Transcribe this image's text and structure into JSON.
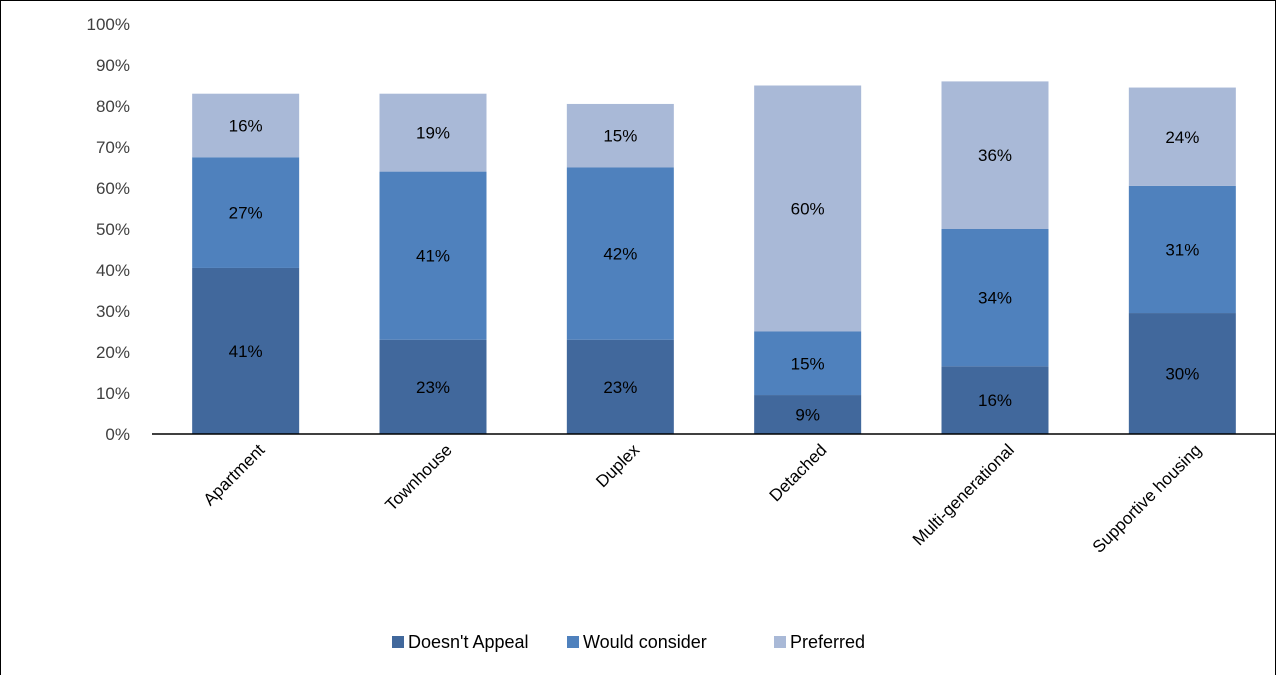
{
  "chart_data": {
    "type": "bar",
    "stacked": true,
    "categories": [
      "Apartment",
      "Townhouse",
      "Duplex",
      "Detached",
      "Multi-generational",
      "Supportive housing"
    ],
    "series": [
      {
        "name": "Doesn't Appeal",
        "values": [
          40.5,
          23,
          23,
          9.5,
          16.5,
          29.5
        ],
        "labels": [
          "41%",
          "23%",
          "23%",
          "9%",
          "16%",
          "30%"
        ]
      },
      {
        "name": "Would consider",
        "values": [
          27,
          41,
          42,
          15.5,
          33.5,
          31
        ],
        "labels": [
          "27%",
          "41%",
          "42%",
          "15%",
          "34%",
          "31%"
        ]
      },
      {
        "name": "Preferred",
        "values": [
          15.5,
          19,
          15.5,
          60,
          36,
          24
        ],
        "labels": [
          "16%",
          "19%",
          "15%",
          "60%",
          "36%",
          "24%"
        ]
      }
    ],
    "ylim": [
      0,
      100
    ],
    "yticks": [
      "0%",
      "10%",
      "20%",
      "30%",
      "40%",
      "50%",
      "60%",
      "70%",
      "80%",
      "90%",
      "100%"
    ],
    "title": "",
    "xlabel": "",
    "ylabel": "",
    "colors": [
      "#41689c",
      "#4f81bd",
      "#a9b9d7"
    ],
    "grid": false,
    "legend_position": "bottom"
  }
}
